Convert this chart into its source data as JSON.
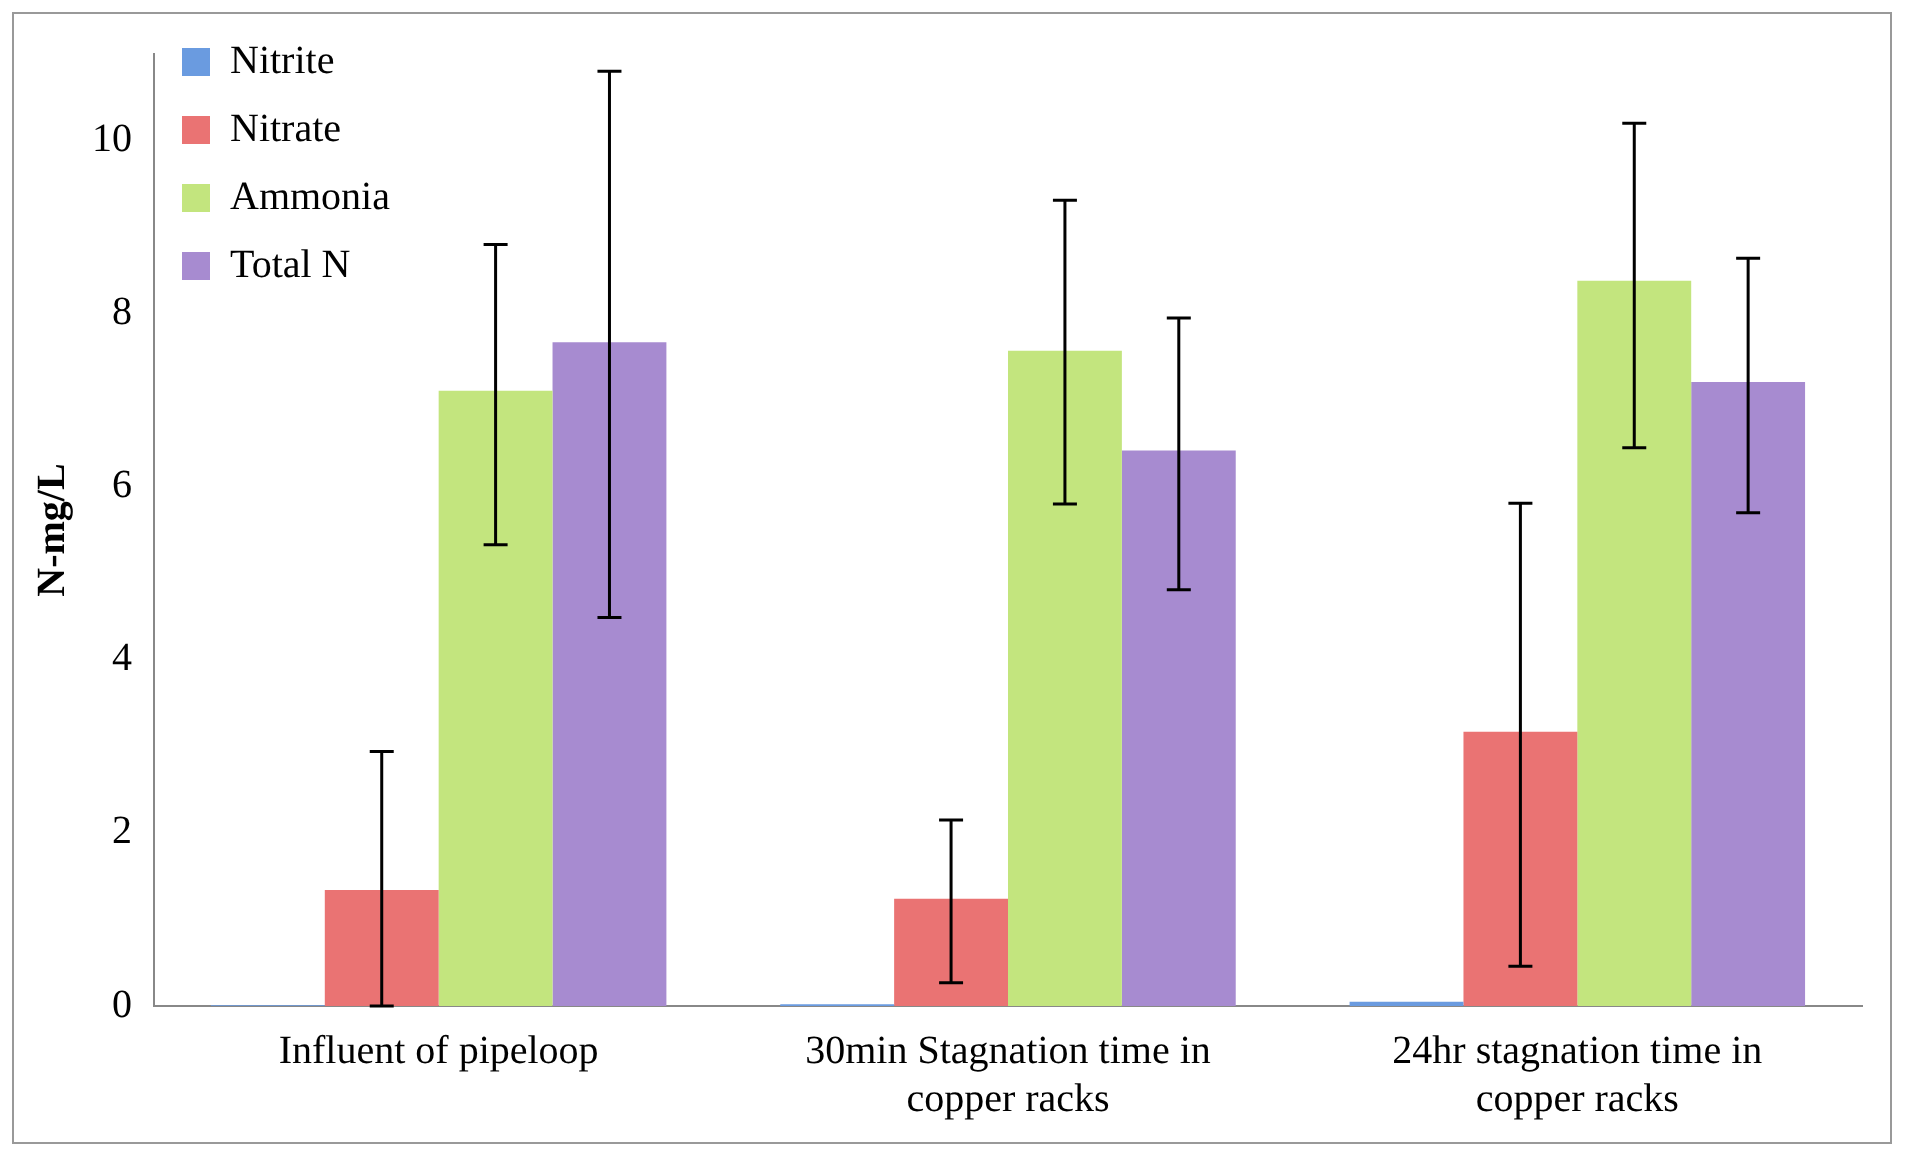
{
  "chart_data": {
    "type": "bar",
    "ylabel": "N-mg/L",
    "categories": [
      "Influent of pipeloop",
      "30min Stagnation time in copper racks",
      "24hr stagnation time in copper racks"
    ],
    "series": [
      {
        "name": "Nitrite",
        "color": "#6a9be0",
        "values": [
          0.01,
          0.02,
          0.05
        ]
      },
      {
        "name": "Nitrate",
        "color": "#ea7373",
        "values": [
          1.34,
          1.24,
          3.17
        ],
        "errors": [
          [
            0,
            2.94
          ],
          [
            0.27,
            2.15
          ],
          [
            0.46,
            5.81
          ]
        ]
      },
      {
        "name": "Ammonia",
        "color": "#c3e57e",
        "values": [
          7.11,
          7.57,
          8.38
        ],
        "errors": [
          [
            5.33,
            8.8
          ],
          [
            5.8,
            9.31
          ],
          [
            6.45,
            10.2
          ]
        ]
      },
      {
        "name": "Total N",
        "color": "#a78bd0",
        "values": [
          7.67,
          6.42,
          7.21
        ],
        "errors": [
          [
            4.49,
            10.8
          ],
          [
            4.81,
            7.95
          ],
          [
            5.7,
            8.64
          ]
        ]
      }
    ],
    "ylim": [
      0,
      11
    ],
    "yticks": [
      0,
      2,
      4,
      6,
      8,
      10
    ],
    "grid": false,
    "legend": "top left"
  }
}
